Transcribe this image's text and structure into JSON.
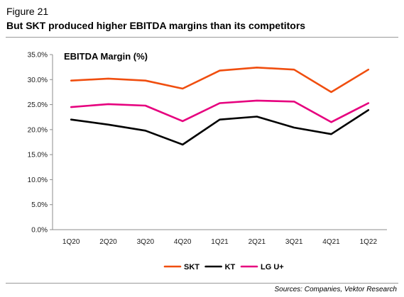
{
  "figure_label": "Figure 21",
  "title": "But SKT produced higher EBITDA margins than its competitors",
  "source": "Sources: Companies, Vektor Research",
  "chart_data": {
    "type": "line",
    "title": "EBITDA Margin (%)",
    "xlabel": "",
    "ylabel": "",
    "categories": [
      "1Q20",
      "2Q20",
      "3Q20",
      "4Q20",
      "1Q21",
      "2Q21",
      "3Q21",
      "4Q21",
      "1Q22"
    ],
    "ylim": [
      0,
      35
    ],
    "yticks": [
      0,
      5,
      10,
      15,
      20,
      25,
      30,
      35
    ],
    "ytick_labels": [
      "0.0%",
      "5.0%",
      "10.0%",
      "15.0%",
      "20.0%",
      "25.0%",
      "30.0%",
      "35.0%"
    ],
    "grid": false,
    "legend_position": "bottom",
    "series": [
      {
        "name": "SKT",
        "color": "#f04e0f",
        "values": [
          29.8,
          30.2,
          29.8,
          28.2,
          31.8,
          32.4,
          32.0,
          27.5,
          32.0
        ]
      },
      {
        "name": "KT",
        "color": "#000000",
        "values": [
          22.0,
          21.0,
          19.8,
          17.0,
          22.0,
          22.6,
          20.4,
          19.1,
          23.9
        ]
      },
      {
        "name": "LG U+",
        "color": "#e6007e",
        "values": [
          24.5,
          25.1,
          24.8,
          21.7,
          25.3,
          25.8,
          25.6,
          21.5,
          25.3
        ]
      }
    ]
  }
}
